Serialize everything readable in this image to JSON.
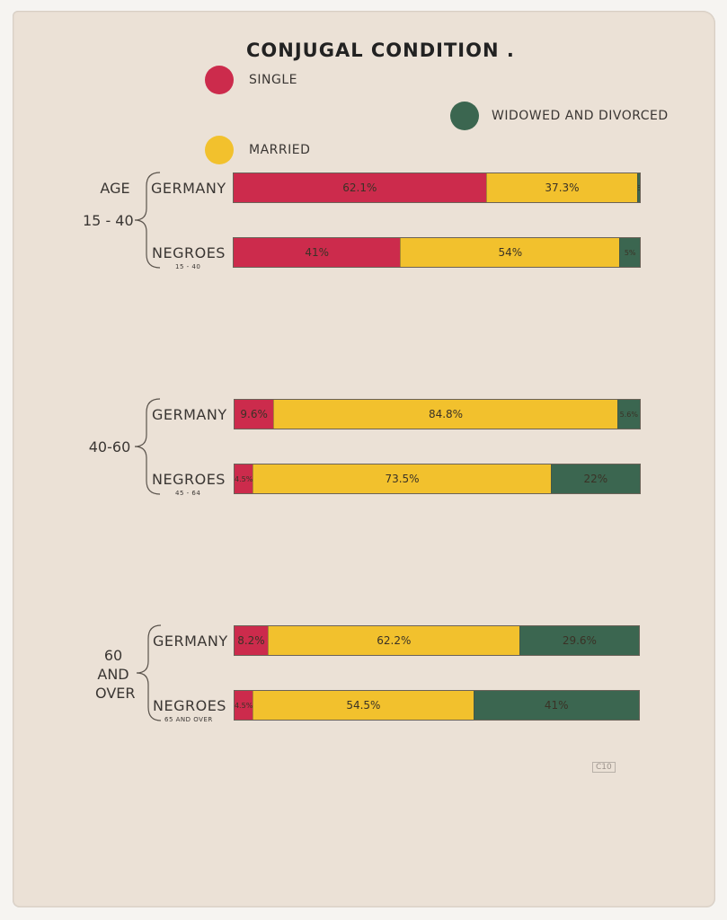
{
  "title": "CONJUGAL CONDITION .",
  "legend": {
    "single": {
      "label": "SINGLE",
      "color": "#cc2b4c"
    },
    "married": {
      "label": "MARRIED",
      "color": "#f2c12d"
    },
    "widowed": {
      "label": "WIDOWED AND DIVORCED",
      "color": "#3b6650"
    }
  },
  "page_number": "C10",
  "chart_data": {
    "type": "bar",
    "stacked": true,
    "orientation": "horizontal",
    "title": "CONJUGAL CONDITION .",
    "series": [
      {
        "key": "single",
        "name": "SINGLE",
        "color": "#cc2b4c"
      },
      {
        "key": "married",
        "name": "MARRIED",
        "color": "#f2c12d"
      },
      {
        "key": "widowed",
        "name": "WIDOWED AND DIVORCED",
        "color": "#3b6650"
      }
    ],
    "groups": [
      {
        "label_lines": [
          "AGE",
          "15 - 40"
        ],
        "bars": [
          {
            "country": "GERMANY",
            "sublabel": "",
            "values": [
              62.1,
              37.3,
              0.6
            ],
            "labels": [
              "62.1%",
              "37.3%",
              ".6%"
            ]
          },
          {
            "country": "NEGROES",
            "sublabel": "15 - 40",
            "values": [
              41,
              54,
              5
            ],
            "labels": [
              "41%",
              "54%",
              "5%"
            ]
          }
        ]
      },
      {
        "label_lines": [
          "40-60"
        ],
        "bars": [
          {
            "country": "GERMANY",
            "sublabel": "",
            "values": [
              9.6,
              84.8,
              5.6
            ],
            "labels": [
              "9.6%",
              "84.8%",
              "5.6%"
            ]
          },
          {
            "country": "NEGROES",
            "sublabel": "45 - 64",
            "values": [
              4.5,
              73.5,
              22
            ],
            "labels": [
              "4.5%",
              "73.5%",
              "22%"
            ]
          }
        ]
      },
      {
        "label_lines": [
          "60",
          "AND",
          "OVER"
        ],
        "bars": [
          {
            "country": "GERMANY",
            "sublabel": "",
            "values": [
              8.2,
              62.2,
              29.6
            ],
            "labels": [
              "8.2%",
              "62.2%",
              "29.6%"
            ]
          },
          {
            "country": "NEGROES",
            "sublabel": "65 AND OVER",
            "values": [
              4.5,
              54.5,
              41
            ],
            "labels": [
              "4.5%",
              "54.5%",
              "41%"
            ]
          }
        ]
      }
    ]
  }
}
